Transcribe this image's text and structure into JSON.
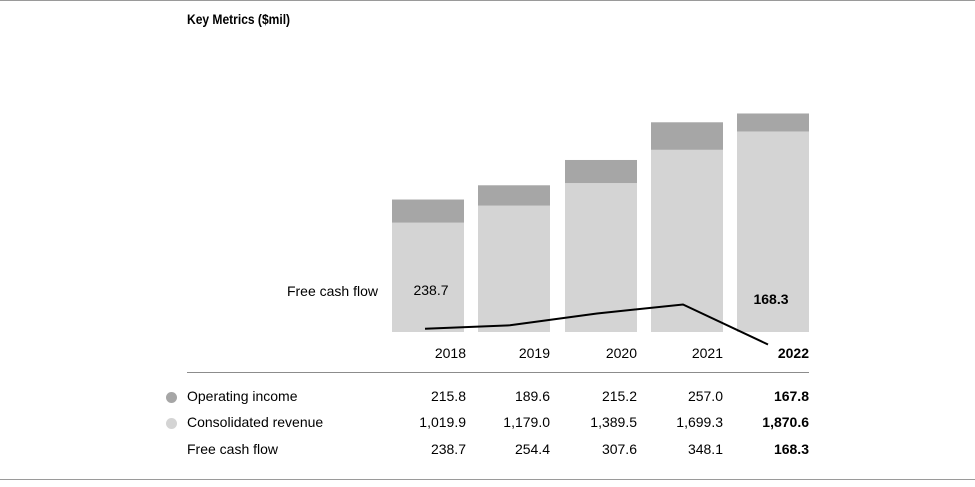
{
  "header": {
    "title": "Key Metrics ($mil)"
  },
  "colors": {
    "operating_income": "#a6a6a6",
    "consolidated_revenue": "#d4d4d4",
    "free_cash_flow_line": "#000000"
  },
  "legend": {
    "operating_income_label": "Operating income",
    "consolidated_revenue_label": "Consolidated revenue",
    "free_cash_flow_label": "Free cash flow"
  },
  "chart_data": {
    "type": "bar",
    "title": "Key Metrics ($mil)",
    "stacked": true,
    "categories": [
      "2018",
      "2019",
      "2020",
      "2021",
      "2022"
    ],
    "series": [
      {
        "name": "Consolidated revenue",
        "type": "bar",
        "values": [
          1019.9,
          1179.0,
          1389.5,
          1699.3,
          1870.6
        ]
      },
      {
        "name": "Operating income",
        "type": "bar",
        "values": [
          215.8,
          189.6,
          215.2,
          257.0,
          167.8
        ]
      },
      {
        "name": "Free cash flow",
        "type": "line",
        "values": [
          238.7,
          254.4,
          307.6,
          348.1,
          168.3
        ]
      }
    ],
    "line_label": "Free cash flow",
    "line_annotations": {
      "first": "238.7",
      "last": "168.3"
    },
    "ylim": [
      0,
      2100
    ]
  },
  "table": {
    "operating_income": [
      "215.8",
      "189.6",
      "215.2",
      "257.0",
      "167.8"
    ],
    "consolidated_revenue": [
      "1,019.9",
      "1,179.0",
      "1,389.5",
      "1,699.3",
      "1,870.6"
    ],
    "free_cash_flow": [
      "238.7",
      "254.4",
      "307.6",
      "348.1",
      "168.3"
    ]
  }
}
